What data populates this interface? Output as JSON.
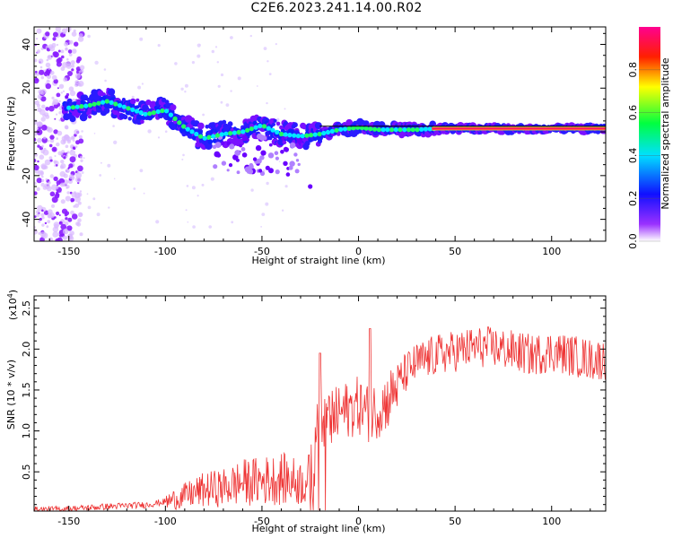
{
  "title": "C2E6.2023.241.14.00.R02",
  "chart_data": [
    {
      "type": "heatmap",
      "xlabel": "Height of straight line (km)",
      "ylabel": "Frequency (Hz)",
      "xlim": [
        -168,
        128
      ],
      "ylim": [
        -50,
        48
      ],
      "xticks": [
        -150,
        -100,
        -50,
        0,
        50,
        100
      ],
      "yticks": [
        -40,
        -20,
        0,
        20,
        40
      ],
      "colorbar": {
        "label": "Normalized spectral amplitude",
        "range": [
          0,
          1
        ],
        "ticks": [
          "0.0",
          "0.2",
          "0.4",
          "0.6",
          "0.8"
        ],
        "colors": [
          "#ffffff",
          "#8000ff",
          "#0000ff",
          "#00ffff",
          "#00ff00",
          "#ffff00",
          "#ff0000",
          "#ff00a0"
        ]
      },
      "ridge": [
        {
          "x": -150,
          "y": 11
        },
        {
          "x": -140,
          "y": 12
        },
        {
          "x": -130,
          "y": 14
        },
        {
          "x": -120,
          "y": 11
        },
        {
          "x": -110,
          "y": 8
        },
        {
          "x": -100,
          "y": 10
        },
        {
          "x": -90,
          "y": 2
        },
        {
          "x": -80,
          "y": -3
        },
        {
          "x": -70,
          "y": -1
        },
        {
          "x": -60,
          "y": 0
        },
        {
          "x": -50,
          "y": 3
        },
        {
          "x": -40,
          "y": -1
        },
        {
          "x": -30,
          "y": -2
        },
        {
          "x": -20,
          "y": -1
        },
        {
          "x": -10,
          "y": 1
        },
        {
          "x": 0,
          "y": 2
        },
        {
          "x": 10,
          "y": 1
        },
        {
          "x": 20,
          "y": 1
        },
        {
          "x": 30,
          "y": 1
        },
        {
          "x": 40,
          "y": 1.5
        },
        {
          "x": 60,
          "y": 1.5
        },
        {
          "x": 80,
          "y": 1.5
        },
        {
          "x": 100,
          "y": 1.5
        },
        {
          "x": 128,
          "y": 1.5
        }
      ]
    },
    {
      "type": "line",
      "xlabel": "Height of straight line (km)",
      "ylabel": "SNR (10 * v/v)",
      "y_multiplier": "(x10",
      "y_multiplier_exp": "4",
      "y_multiplier_close": ")",
      "xlim": [
        -168,
        128
      ],
      "ylim": [
        0.02,
        2.65
      ],
      "xticks": [
        -150,
        -100,
        -50,
        0,
        50,
        100
      ],
      "yticks": [
        0.5,
        1.0,
        1.5,
        2.0,
        2.5
      ],
      "ytick_labels": [
        "0.5",
        "1.0",
        "1.5",
        "2.0",
        "2.5"
      ],
      "color": "#ee3333",
      "series_envelope": [
        {
          "x": -168,
          "y": 0.04
        },
        {
          "x": -150,
          "y": 0.05
        },
        {
          "x": -130,
          "y": 0.08
        },
        {
          "x": -110,
          "y": 0.1
        },
        {
          "x": -100,
          "y": 0.14
        },
        {
          "x": -90,
          "y": 0.22
        },
        {
          "x": -80,
          "y": 0.3
        },
        {
          "x": -70,
          "y": 0.33
        },
        {
          "x": -60,
          "y": 0.4
        },
        {
          "x": -50,
          "y": 0.42
        },
        {
          "x": -40,
          "y": 0.45
        },
        {
          "x": -30,
          "y": 0.4
        },
        {
          "x": -25,
          "y": 0.45
        },
        {
          "x": -20,
          "y": 1.2
        },
        {
          "x": -15,
          "y": 1.15
        },
        {
          "x": -10,
          "y": 1.25
        },
        {
          "x": -5,
          "y": 1.3
        },
        {
          "x": 0,
          "y": 1.35
        },
        {
          "x": 5,
          "y": 1.25
        },
        {
          "x": 10,
          "y": 1.3
        },
        {
          "x": 15,
          "y": 1.4
        },
        {
          "x": 20,
          "y": 1.6
        },
        {
          "x": 25,
          "y": 1.75
        },
        {
          "x": 30,
          "y": 1.85
        },
        {
          "x": 40,
          "y": 1.95
        },
        {
          "x": 50,
          "y": 2.0
        },
        {
          "x": 60,
          "y": 2.05
        },
        {
          "x": 70,
          "y": 2.05
        },
        {
          "x": 80,
          "y": 2.0
        },
        {
          "x": 90,
          "y": 1.95
        },
        {
          "x": 100,
          "y": 2.0
        },
        {
          "x": 110,
          "y": 1.95
        },
        {
          "x": 120,
          "y": 1.9
        },
        {
          "x": 128,
          "y": 1.9
        }
      ]
    }
  ]
}
